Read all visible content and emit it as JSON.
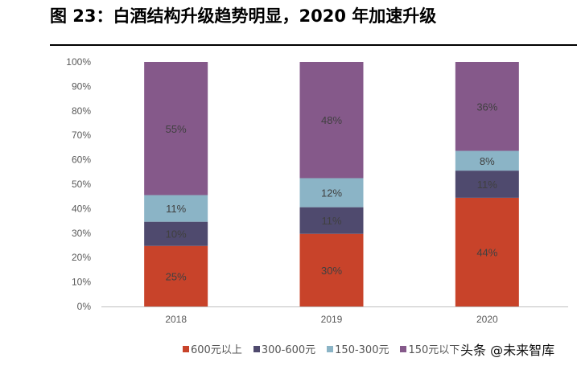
{
  "title": "图 23：白酒结构升级趋势明显，2020 年加速升级",
  "watermark": "头条 @未来智库",
  "chart_data": {
    "type": "bar",
    "stacked": true,
    "categories": [
      "2018",
      "2019",
      "2020"
    ],
    "series": [
      {
        "name": "600元以上",
        "color": "#C8432A",
        "values": [
          25,
          30,
          44
        ],
        "labels": [
          "25%",
          "30%",
          "44%"
        ]
      },
      {
        "name": "300-600元",
        "color": "#4F4A6E",
        "values": [
          10,
          11,
          11
        ],
        "labels": [
          "10%",
          "11%",
          "11%"
        ]
      },
      {
        "name": "150-300元",
        "color": "#8BB4C6",
        "values": [
          11,
          12,
          8
        ],
        "labels": [
          "11%",
          "12%",
          "8%"
        ]
      },
      {
        "name": "150元以下",
        "color": "#85598A",
        "values": [
          55,
          48,
          36
        ],
        "labels": [
          "55%",
          "48%",
          "36%"
        ]
      }
    ],
    "ylim": [
      0,
      100
    ],
    "yticks": [
      "0%",
      "10%",
      "20%",
      "30%",
      "40%",
      "50%",
      "60%",
      "70%",
      "80%",
      "90%",
      "100%"
    ],
    "grid": false,
    "legend": "bottom"
  }
}
